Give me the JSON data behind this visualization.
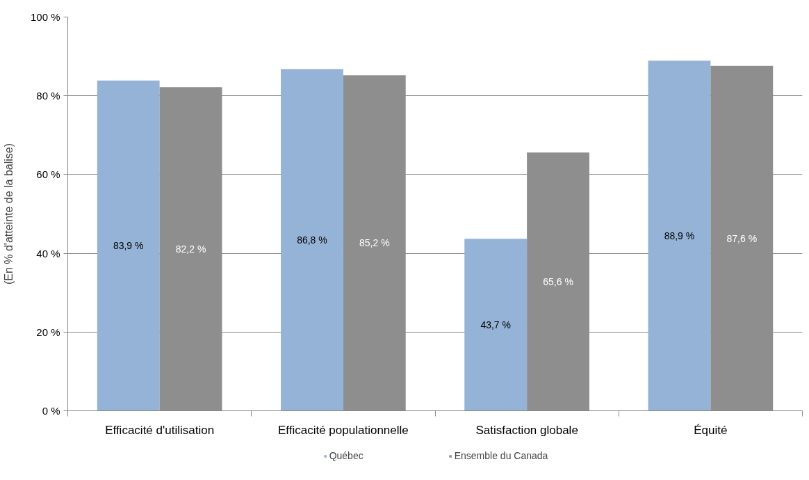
{
  "chart_data": {
    "type": "bar",
    "ylabel": "(En % d'atteinte de la balise)",
    "categories": [
      "Efficacité d'utilisation",
      "Efficacité populationnelle",
      "Satisfaction globale",
      "Équité"
    ],
    "series": [
      {
        "name": "Québec",
        "color": "#95b3d7",
        "values": [
          83.9,
          86.8,
          43.7,
          88.9
        ],
        "value_labels": [
          "83,9 %",
          "86,8 %",
          "43,7 %",
          "88,9 %"
        ]
      },
      {
        "name": "Ensemble du Canada",
        "color": "#8e8e8e",
        "values": [
          82.2,
          85.2,
          65.6,
          87.6
        ],
        "value_labels": [
          "82,2 %",
          "85,2 %",
          "65,6 %",
          "87,6 %"
        ]
      }
    ],
    "ylim": [
      0,
      100
    ],
    "yticks": [
      {
        "value": 0,
        "label": "0 %"
      },
      {
        "value": 20,
        "label": "20 %"
      },
      {
        "value": 40,
        "label": "40 %"
      },
      {
        "value": 60,
        "label": "60 %"
      },
      {
        "value": 80,
        "label": "80 %"
      },
      {
        "value": 100,
        "label": "100 %"
      }
    ],
    "grid": "y",
    "legend": "bottom"
  }
}
